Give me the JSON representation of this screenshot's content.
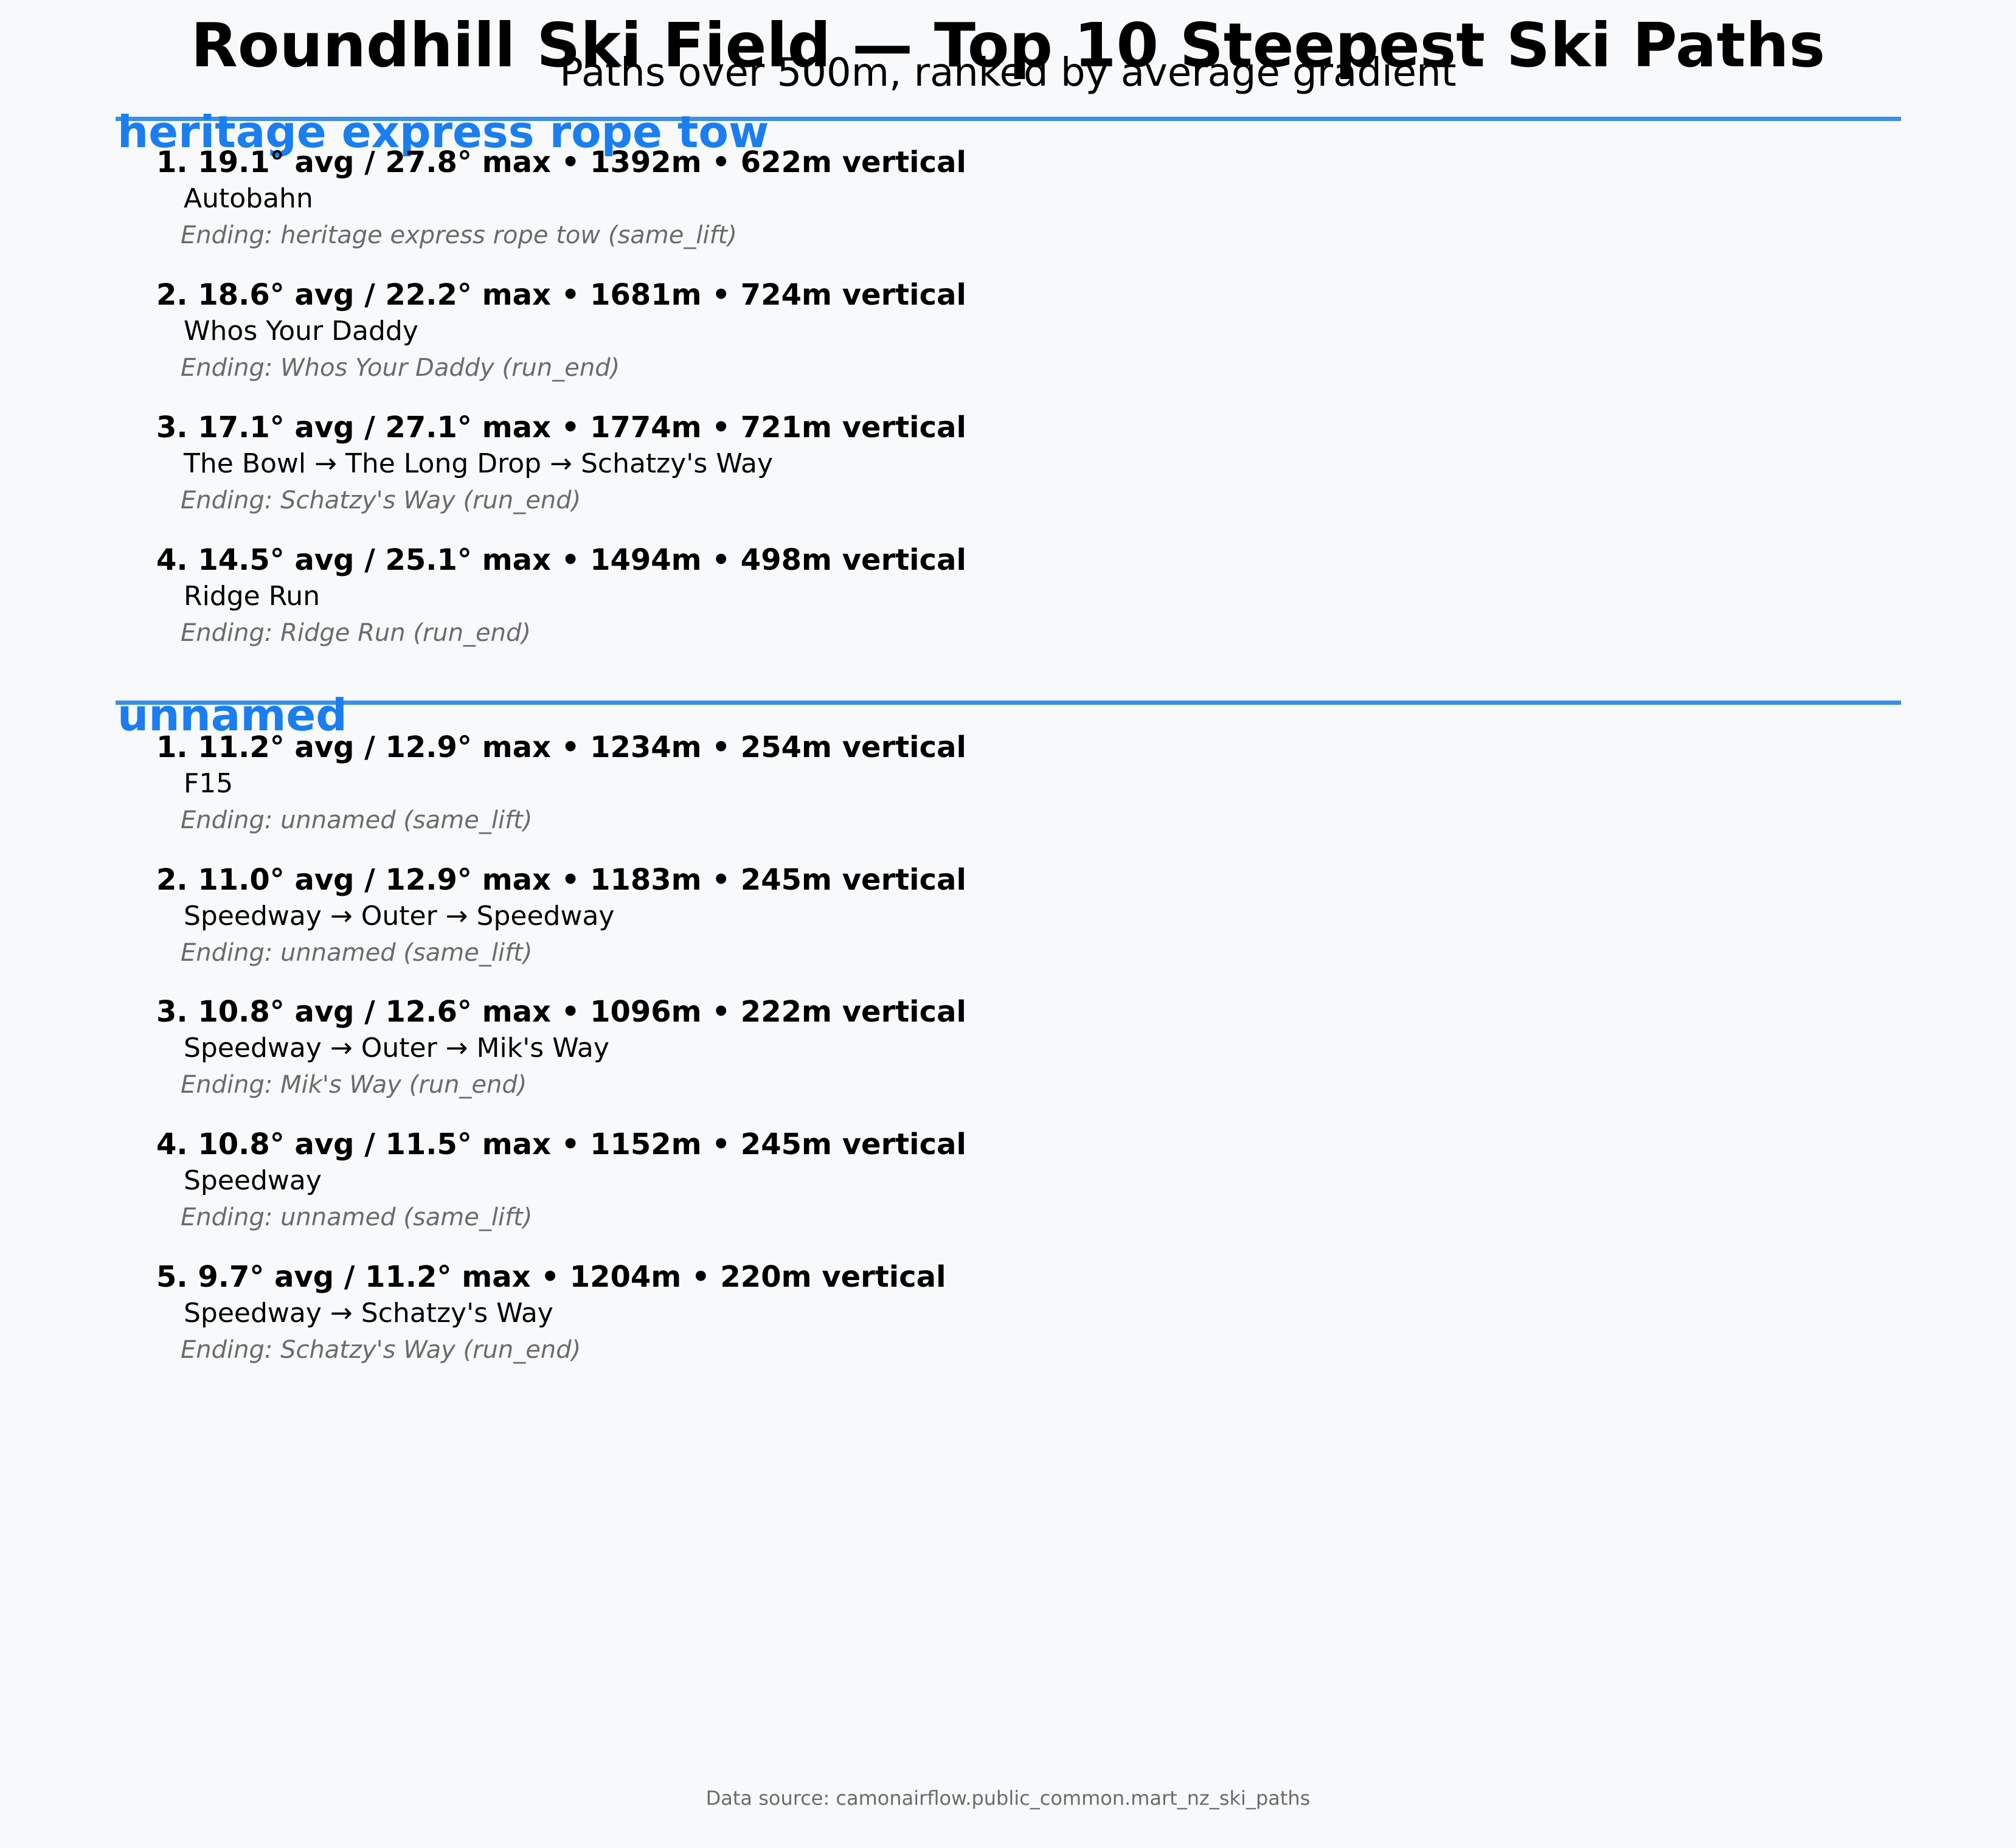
{
  "header": {
    "title": "Roundhill Ski Field — Top 10 Steepest Ski Paths",
    "subtitle": "Paths over 500m, ranked by average gradient"
  },
  "sections": [
    {
      "name": "heritage express rope tow",
      "paths": [
        {
          "headline": "1. 19.1° avg / 27.8° max • 1392m • 622m vertical",
          "route": "Autobahn",
          "ending": "Ending: heritage express rope tow (same_lift)"
        },
        {
          "headline": "2. 18.6° avg / 22.2° max • 1681m • 724m vertical",
          "route": "Whos Your Daddy",
          "ending": "Ending: Whos Your Daddy (run_end)"
        },
        {
          "headline": "3. 17.1° avg / 27.1° max • 1774m • 721m vertical",
          "route": "The Bowl → The Long Drop → Schatzy's Way",
          "ending": "Ending: Schatzy's Way (run_end)"
        },
        {
          "headline": "4. 14.5° avg / 25.1° max • 1494m • 498m vertical",
          "route": "Ridge Run",
          "ending": "Ending: Ridge Run (run_end)"
        }
      ]
    },
    {
      "name": "unnamed",
      "paths": [
        {
          "headline": "1. 11.2° avg / 12.9° max • 1234m • 254m vertical",
          "route": "F15",
          "ending": "Ending: unnamed (same_lift)"
        },
        {
          "headline": "2. 11.0° avg / 12.9° max • 1183m • 245m vertical",
          "route": "Speedway → Outer → Speedway",
          "ending": "Ending: unnamed (same_lift)"
        },
        {
          "headline": "3. 10.8° avg / 12.6° max • 1096m • 222m vertical",
          "route": "Speedway → Outer → Mik's Way",
          "ending": "Ending: Mik's Way (run_end)"
        },
        {
          "headline": "4. 10.8° avg / 11.5° max • 1152m • 245m vertical",
          "route": "Speedway",
          "ending": "Ending: unnamed (same_lift)"
        },
        {
          "headline": "5. 9.7° avg / 11.2° max • 1204m • 220m vertical",
          "route": "Speedway → Schatzy's Way",
          "ending": "Ending: Schatzy's Way (run_end)"
        }
      ]
    }
  ],
  "footer": {
    "source": "Data source: camonairflow.public_common.mart_nz_ski_paths"
  },
  "colors": {
    "background": "#f7f9fb",
    "section_title": "#1a7ef0",
    "section_rule": "#3a8fe8",
    "muted_text": "#6b6b6b"
  }
}
